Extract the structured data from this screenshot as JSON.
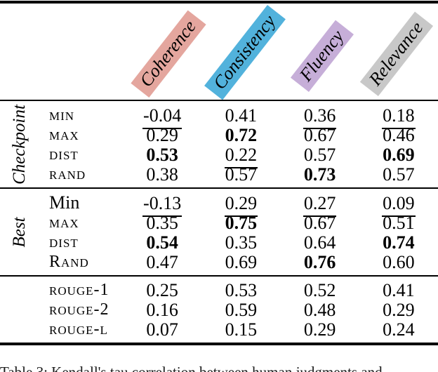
{
  "figure": {
    "caption": "Table 3: Kendall's tau correlation between human judgments and"
  },
  "table": {
    "columns": [
      {
        "label": "Coherence",
        "color": "#E4A69E"
      },
      {
        "label": "Consistency",
        "color": "#52B2DC"
      },
      {
        "label": "Fluency",
        "color": "#C6AED8"
      },
      {
        "label": "Relevance",
        "color": "#C8C8C8"
      }
    ],
    "groups": [
      {
        "name": "Checkpoint",
        "rows": [
          {
            "label": "min",
            "smallcaps": true,
            "values": [
              {
                "text": "-0.04",
                "underline": true
              },
              {
                "text": "0.41"
              },
              {
                "text": "0.36",
                "underline": true
              },
              {
                "text": "0.18",
                "underline": true
              }
            ]
          },
          {
            "label": "max",
            "smallcaps": true,
            "values": [
              {
                "text": "0.29"
              },
              {
                "text": "0.72",
                "bold": true
              },
              {
                "text": "0.67"
              },
              {
                "text": "0.46"
              }
            ]
          },
          {
            "label": "dist",
            "smallcaps": true,
            "values": [
              {
                "text": "0.53",
                "bold": true
              },
              {
                "text": "0.22",
                "underline": true
              },
              {
                "text": "0.57"
              },
              {
                "text": "0.69",
                "bold": true
              }
            ]
          },
          {
            "label": "rand",
            "smallcaps": true,
            "values": [
              {
                "text": "0.38"
              },
              {
                "text": "0.57"
              },
              {
                "text": "0.73",
                "bold": true
              },
              {
                "text": "0.57"
              }
            ]
          }
        ]
      },
      {
        "name": "Best",
        "rows": [
          {
            "label": "Min",
            "smallcaps": false,
            "values": [
              {
                "text": "-0.13",
                "underline": true
              },
              {
                "text": "0.29",
                "underline": true
              },
              {
                "text": "0.27",
                "underline": true
              },
              {
                "text": "0.09",
                "underline": true
              }
            ]
          },
          {
            "label": "max",
            "smallcaps": true,
            "values": [
              {
                "text": "0.35"
              },
              {
                "text": "0.75",
                "bold": true
              },
              {
                "text": "0.67"
              },
              {
                "text": "0.51"
              }
            ]
          },
          {
            "label": "dist",
            "smallcaps": true,
            "values": [
              {
                "text": "0.54",
                "bold": true
              },
              {
                "text": "0.35"
              },
              {
                "text": "0.64"
              },
              {
                "text": "0.74",
                "bold": true
              }
            ]
          },
          {
            "label": "Rand",
            "smallcaps": true,
            "values": [
              {
                "text": "0.47"
              },
              {
                "text": "0.69"
              },
              {
                "text": "0.76",
                "bold": true
              },
              {
                "text": "0.60"
              }
            ]
          }
        ]
      },
      {
        "name": "",
        "rows": [
          {
            "label": "rouge-1",
            "smallcaps": true,
            "values": [
              {
                "text": "0.25"
              },
              {
                "text": "0.53"
              },
              {
                "text": "0.52"
              },
              {
                "text": "0.41"
              }
            ]
          },
          {
            "label": "rouge-2",
            "smallcaps": true,
            "values": [
              {
                "text": "0.16"
              },
              {
                "text": "0.59"
              },
              {
                "text": "0.48"
              },
              {
                "text": "0.29"
              }
            ]
          },
          {
            "label": "rouge-l",
            "smallcaps": true,
            "values": [
              {
                "text": "0.07"
              },
              {
                "text": "0.15"
              },
              {
                "text": "0.29"
              },
              {
                "text": "0.24"
              }
            ]
          }
        ]
      }
    ]
  }
}
